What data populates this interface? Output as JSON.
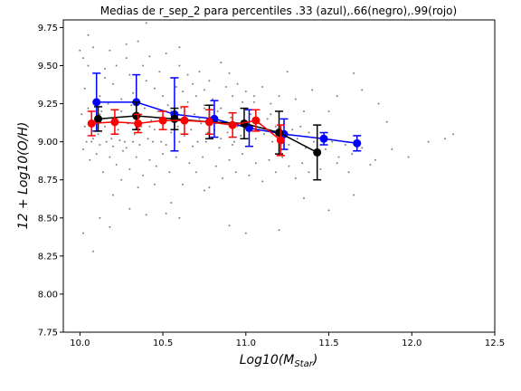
{
  "chart_data": {
    "type": "scatter",
    "title": "Medias de r_sep_2 para percentiles .33 (azul),.66(negro),.99(rojo)",
    "xlabel": "Log10(M",
    "xlabel_sub": "Star",
    "xlabel_close": ")",
    "ylabel": "12 + Log10(O/H)",
    "xlim": [
      9.9,
      12.5
    ],
    "ylim": [
      7.75,
      9.8
    ],
    "xticks": [
      "10.0",
      "10.5",
      "11.0",
      "11.5",
      "12.0",
      "12.5"
    ],
    "yticks": [
      "7.75",
      "8.00",
      "8.25",
      "8.50",
      "8.75",
      "9.00",
      "9.25",
      "9.50",
      "9.75"
    ],
    "grid": false,
    "background_scatter": {
      "color": "#808080",
      "points": [
        [
          10.0,
          9.6
        ],
        [
          10.02,
          9.55
        ],
        [
          10.05,
          9.5
        ],
        [
          10.08,
          9.62
        ],
        [
          10.1,
          9.42
        ],
        [
          10.03,
          9.35
        ],
        [
          10.12,
          9.3
        ],
        [
          10.15,
          9.48
        ],
        [
          10.18,
          9.6
        ],
        [
          10.2,
          9.38
        ],
        [
          10.22,
          9.5
        ],
        [
          10.25,
          9.28
        ],
        [
          10.28,
          9.55
        ],
        [
          10.3,
          9.44
        ],
        [
          10.32,
          9.32
        ],
        [
          10.35,
          9.66
        ],
        [
          10.38,
          9.5
        ],
        [
          10.4,
          9.4
        ],
        [
          10.42,
          9.56
        ],
        [
          10.45,
          9.35
        ],
        [
          10.48,
          9.46
        ],
        [
          10.5,
          9.3
        ],
        [
          10.52,
          9.58
        ],
        [
          10.55,
          9.42
        ],
        [
          10.58,
          9.36
        ],
        [
          10.6,
          9.5
        ],
        [
          10.62,
          9.33
        ],
        [
          10.65,
          9.44
        ],
        [
          10.68,
          9.38
        ],
        [
          10.7,
          9.3
        ],
        [
          10.72,
          9.46
        ],
        [
          10.75,
          9.34
        ],
        [
          10.78,
          9.4
        ],
        [
          10.8,
          9.28
        ],
        [
          10.85,
          9.52
        ],
        [
          10.88,
          9.36
        ],
        [
          10.9,
          9.45
        ],
        [
          10.92,
          9.3
        ],
        [
          10.95,
          9.38
        ],
        [
          10.98,
          9.26
        ],
        [
          11.0,
          9.33
        ],
        [
          11.05,
          9.3
        ],
        [
          11.1,
          9.36
        ],
        [
          11.15,
          9.25
        ],
        [
          11.2,
          9.3
        ],
        [
          11.25,
          9.46
        ],
        [
          11.3,
          9.28
        ],
        [
          11.35,
          9.2
        ],
        [
          11.4,
          9.34
        ],
        [
          11.5,
          9.2
        ],
        [
          11.55,
          9.3
        ],
        [
          11.65,
          9.45
        ],
        [
          11.7,
          9.34
        ],
        [
          11.8,
          9.25
        ],
        [
          11.85,
          9.13
        ],
        [
          10.01,
          9.18
        ],
        [
          10.03,
          9.1
        ],
        [
          10.05,
          9.22
        ],
        [
          10.07,
          9.0
        ],
        [
          10.09,
          9.15
        ],
        [
          10.11,
          9.05
        ],
        [
          10.13,
          9.2
        ],
        [
          10.15,
          9.1
        ],
        [
          10.17,
          9.25
        ],
        [
          10.19,
          9.02
        ],
        [
          10.21,
          9.15
        ],
        [
          10.23,
          9.08
        ],
        [
          10.25,
          9.2
        ],
        [
          10.27,
          9.0
        ],
        [
          10.29,
          9.12
        ],
        [
          10.31,
          9.24
        ],
        [
          10.33,
          9.05
        ],
        [
          10.35,
          9.16
        ],
        [
          10.37,
          9.1
        ],
        [
          10.39,
          9.22
        ],
        [
          10.41,
          9.02
        ],
        [
          10.43,
          9.14
        ],
        [
          10.45,
          9.08
        ],
        [
          10.47,
          9.2
        ],
        [
          10.49,
          9.0
        ],
        [
          10.51,
          9.12
        ],
        [
          10.53,
          9.24
        ],
        [
          10.55,
          9.06
        ],
        [
          10.57,
          9.16
        ],
        [
          10.59,
          9.1
        ],
        [
          10.61,
          9.22
        ],
        [
          10.63,
          9.04
        ],
        [
          10.65,
          9.14
        ],
        [
          10.67,
          9.08
        ],
        [
          10.69,
          9.18
        ],
        [
          10.71,
          9.0
        ],
        [
          10.73,
          9.12
        ],
        [
          10.75,
          9.22
        ],
        [
          10.77,
          9.06
        ],
        [
          10.79,
          9.16
        ],
        [
          10.81,
          9.08
        ],
        [
          10.83,
          9.2
        ],
        [
          10.85,
          9.02
        ],
        [
          10.87,
          9.12
        ],
        [
          10.89,
          9.06
        ],
        [
          10.91,
          9.16
        ],
        [
          10.93,
          9.0
        ],
        [
          10.95,
          9.1
        ],
        [
          10.97,
          9.04
        ],
        [
          10.99,
          9.14
        ],
        [
          11.01,
          9.08
        ],
        [
          11.03,
          9.18
        ],
        [
          11.06,
          9.02
        ],
        [
          11.08,
          9.12
        ],
        [
          11.11,
          9.05
        ],
        [
          11.13,
          9.15
        ],
        [
          11.16,
          9.0
        ],
        [
          11.18,
          9.1
        ],
        [
          11.21,
          9.04
        ],
        [
          11.23,
          9.12
        ],
        [
          11.26,
          8.98
        ],
        [
          11.28,
          9.08
        ],
        [
          11.31,
          9.02
        ],
        [
          11.33,
          9.1
        ],
        [
          11.36,
          8.96
        ],
        [
          11.38,
          9.06
        ],
        [
          11.41,
          9.0
        ],
        [
          11.43,
          8.92
        ],
        [
          11.46,
          9.04
        ],
        [
          11.48,
          8.95
        ],
        [
          11.52,
          9.0
        ],
        [
          11.56,
          8.9
        ],
        [
          11.6,
          8.98
        ],
        [
          11.64,
          8.92
        ],
        [
          11.7,
          8.96
        ],
        [
          11.78,
          8.88
        ],
        [
          11.88,
          8.95
        ],
        [
          11.98,
          8.9
        ],
        [
          12.1,
          9.0
        ],
        [
          12.2,
          9.02
        ],
        [
          12.25,
          9.05
        ],
        [
          10.02,
          8.95
        ],
        [
          10.06,
          8.88
        ],
        [
          10.1,
          8.92
        ],
        [
          10.14,
          8.8
        ],
        [
          10.18,
          8.9
        ],
        [
          10.22,
          8.85
        ],
        [
          10.26,
          8.94
        ],
        [
          10.3,
          8.82
        ],
        [
          10.34,
          8.9
        ],
        [
          10.38,
          8.78
        ],
        [
          10.42,
          8.88
        ],
        [
          10.46,
          8.84
        ],
        [
          10.5,
          8.92
        ],
        [
          10.54,
          8.8
        ],
        [
          10.58,
          8.9
        ],
        [
          10.62,
          8.72
        ],
        [
          10.66,
          8.86
        ],
        [
          10.7,
          8.8
        ],
        [
          10.74,
          8.9
        ],
        [
          10.78,
          8.7
        ],
        [
          10.82,
          8.84
        ],
        [
          10.86,
          8.76
        ],
        [
          10.9,
          8.88
        ],
        [
          10.94,
          8.8
        ],
        [
          10.98,
          8.92
        ],
        [
          11.02,
          8.78
        ],
        [
          11.06,
          8.86
        ],
        [
          11.1,
          8.74
        ],
        [
          11.14,
          8.88
        ],
        [
          11.18,
          8.8
        ],
        [
          11.22,
          8.9
        ],
        [
          11.26,
          8.84
        ],
        [
          11.3,
          8.76
        ],
        [
          11.34,
          8.86
        ],
        [
          11.38,
          8.8
        ],
        [
          11.45,
          8.82
        ],
        [
          11.55,
          8.86
        ],
        [
          11.62,
          8.8
        ],
        [
          11.75,
          8.85
        ],
        [
          10.04,
          9.0
        ],
        [
          10.08,
          9.02
        ],
        [
          10.12,
          8.98
        ],
        [
          10.16,
          9.0
        ],
        [
          10.2,
          8.97
        ],
        [
          10.24,
          9.01
        ],
        [
          10.28,
          8.96
        ],
        [
          10.32,
          9.0
        ],
        [
          10.36,
          8.98
        ],
        [
          10.44,
          9.0
        ],
        [
          10.52,
          8.98
        ],
        [
          10.6,
          9.0
        ],
        [
          10.68,
          8.97
        ],
        [
          10.76,
          9.0
        ],
        [
          10.84,
          8.96
        ],
        [
          10.92,
          8.98
        ],
        [
          10.02,
          8.4
        ],
        [
          10.08,
          8.28
        ],
        [
          10.12,
          8.5
        ],
        [
          10.18,
          8.44
        ],
        [
          10.3,
          8.56
        ],
        [
          10.4,
          8.52
        ],
        [
          10.52,
          8.53
        ],
        [
          10.6,
          8.5
        ],
        [
          10.9,
          8.45
        ],
        [
          11.0,
          8.4
        ],
        [
          11.2,
          8.42
        ],
        [
          11.35,
          8.63
        ],
        [
          11.5,
          8.55
        ],
        [
          11.65,
          8.65
        ],
        [
          10.2,
          8.65
        ],
        [
          10.35,
          8.7
        ],
        [
          10.55,
          8.6
        ],
        [
          10.75,
          8.68
        ],
        [
          10.05,
          9.7
        ],
        [
          10.4,
          9.78
        ],
        [
          10.28,
          9.64
        ],
        [
          10.6,
          9.62
        ],
        [
          10.25,
          8.75
        ],
        [
          10.45,
          8.72
        ],
        [
          10.15,
          9.42
        ],
        [
          10.35,
          9.25
        ],
        [
          10.55,
          9.2
        ],
        [
          10.65,
          9.26
        ],
        [
          10.75,
          9.24
        ],
        [
          10.85,
          9.22
        ],
        [
          11.05,
          9.26
        ],
        [
          11.15,
          9.18
        ],
        [
          10.12,
          9.18
        ],
        [
          10.22,
          9.12
        ],
        [
          10.32,
          9.18
        ],
        [
          10.42,
          9.1
        ],
        [
          10.62,
          9.12
        ],
        [
          10.72,
          9.15
        ],
        [
          10.82,
          9.12
        ],
        [
          10.92,
          9.1
        ]
      ]
    },
    "series": [
      {
        "color": "#0000ff",
        "x": [
          10.1,
          10.34,
          10.57,
          10.81,
          11.02,
          11.23,
          11.47,
          11.67
        ],
        "y": [
          9.26,
          9.26,
          9.18,
          9.15,
          9.09,
          9.05,
          9.02,
          8.99
        ],
        "err": [
          0.19,
          0.18,
          0.24,
          0.12,
          0.12,
          0.1,
          0.04,
          0.05
        ]
      },
      {
        "color": "#000000",
        "x": [
          10.11,
          10.34,
          10.57,
          10.78,
          10.99,
          11.2,
          11.43
        ],
        "y": [
          9.15,
          9.17,
          9.15,
          9.13,
          9.12,
          9.06,
          8.93
        ],
        "err": [
          0.08,
          0.09,
          0.07,
          0.11,
          0.1,
          0.14,
          0.18
        ]
      },
      {
        "color": "#ff0000",
        "x": [
          10.07,
          10.21,
          10.35,
          10.5,
          10.63,
          10.78,
          10.92,
          11.06,
          11.21
        ],
        "y": [
          9.12,
          9.13,
          9.12,
          9.14,
          9.14,
          9.13,
          9.11,
          9.14,
          9.01
        ],
        "err": [
          0.08,
          0.08,
          0.06,
          0.06,
          0.09,
          0.08,
          0.08,
          0.07,
          0.1
        ]
      }
    ]
  }
}
